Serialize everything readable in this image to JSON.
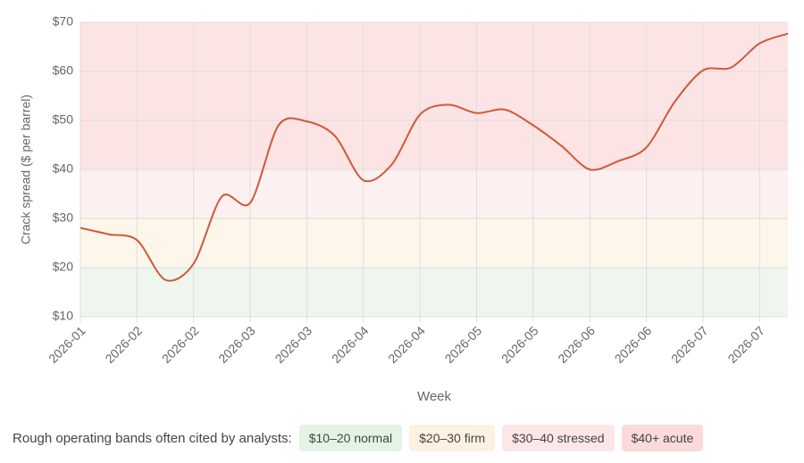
{
  "chart_data": {
    "type": "line",
    "y_label": "Crack spread ($ per barrel)",
    "x_label": "Week",
    "categories": [
      "2026-01",
      null,
      "2026-02",
      null,
      "2026-02",
      null,
      "2026-03",
      null,
      "2026-03",
      null,
      "2026-04",
      null,
      "2026-04",
      null,
      "2026-05",
      null,
      "2026-05",
      null,
      "2026-06",
      null,
      "2026-06",
      null,
      "2026-07",
      null,
      "2026-07",
      null
    ],
    "series": [
      {
        "color": "#d0583b",
        "values": [
          28.1,
          26.8,
          25.6,
          17.5,
          20.8,
          34.5,
          33.2,
          49.0,
          49.8,
          46.8,
          37.8,
          41.0,
          51.2,
          53.2,
          51.5,
          52.2,
          49.0,
          44.8,
          40.0,
          41.7,
          44.5,
          53.8,
          60.2,
          60.8,
          65.7,
          67.7
        ]
      }
    ],
    "ylim": [
      10,
      70
    ],
    "yticks": [
      {
        "value": 10,
        "label": "$10"
      },
      {
        "value": 20,
        "label": "$20"
      },
      {
        "value": 30,
        "label": "$30"
      },
      {
        "value": 40,
        "label": "$40"
      },
      {
        "value": 50,
        "label": "$50"
      },
      {
        "value": 60,
        "label": "$60"
      },
      {
        "value": 70,
        "label": "$70"
      }
    ],
    "grid": true,
    "legend_title": "Rough operating bands often cited by analysts:",
    "bands": [
      {
        "label": "$10–20 normal",
        "from": 10,
        "to": 20,
        "color": "#eef6ee",
        "chip": "#e3f3e5"
      },
      {
        "label": "$20–30 firm",
        "from": 20,
        "to": 30,
        "color": "#fdf6ea",
        "chip": "#fdf1df"
      },
      {
        "label": "$30–40 stressed",
        "from": 30,
        "to": 40,
        "color": "#fdf0f0",
        "chip": "#fce6e8"
      },
      {
        "label": "$40+ acute",
        "from": 40,
        "to": 70,
        "color": "#fde4e4",
        "chip": "#fadada"
      }
    ]
  }
}
